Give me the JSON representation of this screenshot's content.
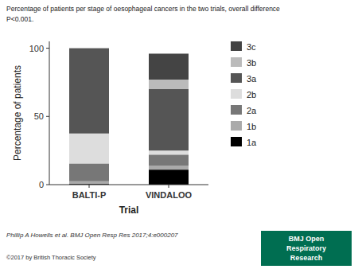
{
  "chart_data": {
    "type": "bar",
    "stacked": true,
    "title": "Percentage of patients per stage of oesophageal cancers in the two trials, overall difference",
    "subtitle": "P<0.001.",
    "x_label": "Trial",
    "y_label": "Percentage of patients",
    "categories": [
      "BALTI-P",
      "VINDALOO"
    ],
    "series": [
      {
        "name": "1a",
        "color": "#000000",
        "values": [
          0.5,
          11.0
        ]
      },
      {
        "name": "1b",
        "color": "#aaaaaa",
        "values": [
          2.0,
          3.0
        ]
      },
      {
        "name": "2a",
        "color": "#777777",
        "values": [
          13.0,
          8.0
        ]
      },
      {
        "name": "2b",
        "color": "#dddddd",
        "values": [
          22.0,
          3.0
        ]
      },
      {
        "name": "3a",
        "color": "#555555",
        "values": [
          62.5,
          45.0
        ]
      },
      {
        "name": "3b",
        "color": "#bbbbbb",
        "values": [
          0.0,
          7.0
        ]
      },
      {
        "name": "3c",
        "color": "#444444",
        "values": [
          0.0,
          19.0
        ]
      }
    ],
    "ylim": [
      0,
      105
    ],
    "yticks": [
      0,
      50,
      100
    ],
    "grid": false,
    "legend": "right",
    "annotations": [
      "Phillip A Howells et al. BMJ Open Resp Res 2017;4:e000207",
      "©2017 by British Thoracic Society",
      "BMJ Open",
      "Respiratory",
      "Research"
    ]
  }
}
